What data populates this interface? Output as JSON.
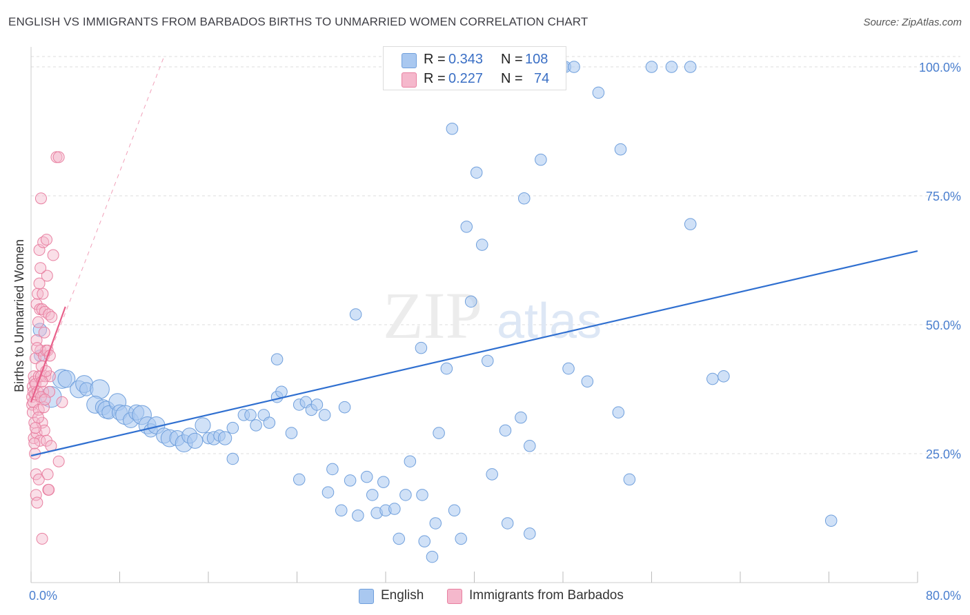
{
  "header": {
    "title": "ENGLISH VS IMMIGRANTS FROM BARBADOS BIRTHS TO UNMARRIED WOMEN CORRELATION CHART",
    "source": "Source: ZipAtlas.com"
  },
  "watermark": {
    "zip": "ZIP",
    "atlas": "atlas"
  },
  "legend": {
    "rows": [
      {
        "r_label": "R =",
        "r_value": "0.343",
        "n_label": "N =",
        "n_value": "108"
      },
      {
        "r_label": "R =",
        "r_value": "0.227",
        "n_label": "N =",
        "n_value": "74"
      }
    ]
  },
  "bottom_legend": {
    "english": "English",
    "barbados": "Immigrants from Barbados"
  },
  "colors": {
    "english_fill": "#a9c8f0",
    "english_stroke": "#6f9fdc",
    "english_line": "#2f6fd0",
    "barbados_fill": "#f5b8cc",
    "barbados_stroke": "#e87fa0",
    "barbados_line": "#e8608a",
    "grid": "#dddddd",
    "axis_text": "#4a7fcf"
  },
  "chart_data": {
    "type": "scatter",
    "title": "ENGLISH VS IMMIGRANTS FROM BARBADOS BIRTHS TO UNMARRIED WOMEN CORRELATION CHART",
    "xlabel": "",
    "ylabel": "Births to Unmarried Women",
    "xlim": [
      0,
      80
    ],
    "ylim": [
      0,
      102
    ],
    "x_tick_labels": [
      "0.0%",
      "80.0%"
    ],
    "y_ticks": [
      25,
      50,
      75,
      100
    ],
    "y_tick_labels": [
      "25.0%",
      "50.0%",
      "75.0%",
      "100.0%"
    ],
    "series": [
      {
        "name": "English",
        "r": 0.343,
        "n": 108,
        "trend": {
          "x0": 0,
          "y0": 24.6,
          "x1": 80,
          "y1": 64.3
        },
        "points": [
          [
            0.8,
            49,
            14
          ],
          [
            0.8,
            44,
            12
          ],
          [
            1.8,
            36,
            22
          ],
          [
            2.8,
            39.5,
            20
          ],
          [
            3.2,
            39.5,
            18
          ],
          [
            4.3,
            37.5,
            18
          ],
          [
            4.8,
            38.5,
            18
          ],
          [
            5,
            37.5,
            14
          ],
          [
            6.2,
            37.5,
            20
          ],
          [
            5.8,
            34.5,
            18
          ],
          [
            6.5,
            34,
            16
          ],
          [
            6.8,
            33.5,
            18
          ],
          [
            7,
            33,
            14
          ],
          [
            7.8,
            35,
            18
          ],
          [
            8,
            33,
            16
          ],
          [
            8.5,
            32.5,
            20
          ],
          [
            9,
            31.5,
            16
          ],
          [
            9.5,
            33,
            16
          ],
          [
            10,
            32.5,
            20
          ],
          [
            10.5,
            30.5,
            18
          ],
          [
            10.8,
            29.5,
            14
          ],
          [
            11.3,
            30.5,
            18
          ],
          [
            12,
            28.5,
            16
          ],
          [
            12.5,
            28,
            18
          ],
          [
            13.2,
            28,
            16
          ],
          [
            13.8,
            27,
            18
          ],
          [
            14.3,
            28.5,
            16
          ],
          [
            14.8,
            27.5,
            16
          ],
          [
            15.5,
            30.5,
            16
          ],
          [
            16,
            28,
            12
          ],
          [
            16.5,
            28,
            14
          ],
          [
            17,
            28.5,
            12
          ],
          [
            17.5,
            28,
            14
          ],
          [
            18.2,
            30,
            12
          ],
          [
            18.2,
            24,
            12
          ],
          [
            19.2,
            32.5,
            12
          ],
          [
            19.8,
            32.5,
            12
          ],
          [
            20.3,
            30.5,
            12
          ],
          [
            21,
            32.5,
            12
          ],
          [
            21.5,
            31,
            12
          ],
          [
            22.2,
            36,
            12
          ],
          [
            22.6,
            37,
            12
          ],
          [
            22.2,
            43.3,
            12
          ],
          [
            23.5,
            29,
            12
          ],
          [
            24.2,
            34.5,
            12
          ],
          [
            24.8,
            35,
            12
          ],
          [
            24.2,
            20,
            12
          ],
          [
            25.3,
            33.5,
            12
          ],
          [
            25.8,
            34.5,
            12
          ],
          [
            26.5,
            32.5,
            12
          ],
          [
            26.8,
            17.5,
            12
          ],
          [
            27.2,
            22,
            12
          ],
          [
            28,
            14,
            12
          ],
          [
            28.3,
            34,
            12
          ],
          [
            28.8,
            19.8,
            12
          ],
          [
            29.3,
            52,
            12
          ],
          [
            29.5,
            13,
            12
          ],
          [
            30.3,
            20.5,
            12
          ],
          [
            30.8,
            17,
            12
          ],
          [
            31.2,
            13.5,
            12
          ],
          [
            31.8,
            19.5,
            12
          ],
          [
            32,
            14,
            12
          ],
          [
            32.8,
            14.3,
            12
          ],
          [
            33.2,
            8.5,
            12
          ],
          [
            33.8,
            17,
            12
          ],
          [
            34.2,
            23.5,
            12
          ],
          [
            35.2,
            45.5,
            12
          ],
          [
            35.3,
            17,
            12
          ],
          [
            35.5,
            8,
            12
          ],
          [
            36.2,
            5,
            12
          ],
          [
            36.5,
            11.5,
            12
          ],
          [
            36.8,
            29,
            12
          ],
          [
            37.5,
            41.5,
            12
          ],
          [
            38,
            88,
            12
          ],
          [
            38.2,
            14,
            12
          ],
          [
            38.8,
            8.5,
            12
          ],
          [
            39.3,
            69,
            12
          ],
          [
            39.7,
            54.5,
            12
          ],
          [
            40.2,
            79.5,
            12
          ],
          [
            40.7,
            65.5,
            12
          ],
          [
            41.2,
            43,
            12
          ],
          [
            41.6,
            21,
            12
          ],
          [
            42.2,
            100,
            12
          ],
          [
            42.8,
            29.5,
            12
          ],
          [
            43,
            11.5,
            12
          ],
          [
            44.2,
            32,
            12
          ],
          [
            44.5,
            74.5,
            12
          ],
          [
            45,
            26.5,
            12
          ],
          [
            45,
            9.5,
            12
          ],
          [
            46,
            82,
            12
          ],
          [
            48,
            100,
            12
          ],
          [
            48.2,
            100,
            12
          ],
          [
            49,
            100,
            12
          ],
          [
            48.5,
            41.5,
            12
          ],
          [
            50.2,
            39,
            12
          ],
          [
            51.2,
            95,
            12
          ],
          [
            53,
            33,
            12
          ],
          [
            53.2,
            84,
            12
          ],
          [
            54,
            20,
            12
          ],
          [
            56,
            100,
            12
          ],
          [
            57.8,
            100,
            12
          ],
          [
            59.5,
            69.5,
            12
          ],
          [
            59.5,
            100,
            12
          ],
          [
            61.5,
            39.5,
            12
          ],
          [
            62.5,
            40,
            12
          ],
          [
            72.2,
            12,
            12
          ]
        ]
      },
      {
        "name": "Immigrants from Barbados",
        "r": 0.227,
        "n": 74,
        "trend": {
          "x0": 0,
          "y0": 35,
          "x1": 3.1,
          "y1": 53.5
        },
        "trend_extended": {
          "x0": 0,
          "y0": 35,
          "x1": 12.0,
          "y1": 102
        },
        "points": [
          [
            0.1,
            36
          ],
          [
            0.1,
            34.5
          ],
          [
            0.15,
            38
          ],
          [
            0.15,
            33
          ],
          [
            0.2,
            37
          ],
          [
            0.2,
            35
          ],
          [
            0.25,
            28
          ],
          [
            0.25,
            40
          ],
          [
            0.3,
            39
          ],
          [
            0.3,
            31
          ],
          [
            0.35,
            36.5
          ],
          [
            0.35,
            25
          ],
          [
            0.4,
            43.5
          ],
          [
            0.4,
            38.5
          ],
          [
            0.45,
            21
          ],
          [
            0.45,
            17
          ],
          [
            0.5,
            54
          ],
          [
            0.5,
            29
          ],
          [
            0.55,
            15.5
          ],
          [
            0.6,
            56
          ],
          [
            0.6,
            37
          ],
          [
            0.65,
            50.5
          ],
          [
            0.7,
            40
          ],
          [
            0.7,
            33.5
          ],
          [
            0.7,
            20
          ],
          [
            0.75,
            64.5
          ],
          [
            0.8,
            53
          ],
          [
            0.8,
            27.5
          ],
          [
            0.85,
            45
          ],
          [
            0.9,
            40
          ],
          [
            0.9,
            74.5
          ],
          [
            0.95,
            42
          ],
          [
            1,
            53
          ],
          [
            1,
            31
          ],
          [
            1,
            8.5
          ],
          [
            1.05,
            56
          ],
          [
            1.1,
            37
          ],
          [
            1.1,
            66
          ],
          [
            1.15,
            44
          ],
          [
            1.2,
            48.5
          ],
          [
            1.2,
            29.5
          ],
          [
            1.25,
            52.5
          ],
          [
            1.3,
            40
          ],
          [
            1.35,
            45
          ],
          [
            1.4,
            66.5
          ],
          [
            1.4,
            27.5
          ],
          [
            1.45,
            59.5
          ],
          [
            1.5,
            45
          ],
          [
            1.5,
            21
          ],
          [
            1.55,
            18
          ],
          [
            1.6,
            52
          ],
          [
            1.65,
            37
          ],
          [
            1.7,
            44
          ],
          [
            1.7,
            40
          ],
          [
            1.8,
            26.5
          ],
          [
            1.85,
            51.5
          ],
          [
            2,
            63.5
          ],
          [
            2.3,
            82.5
          ],
          [
            2.5,
            82.5
          ],
          [
            2.5,
            23.5
          ],
          [
            2.8,
            35
          ],
          [
            0.5,
            47
          ],
          [
            0.65,
            32
          ],
          [
            0.9,
            36
          ],
          [
            1.15,
            34
          ],
          [
            1.35,
            41
          ],
          [
            0.4,
            30
          ],
          [
            0.55,
            45.5
          ],
          [
            0.75,
            58
          ],
          [
            1.0,
            39
          ],
          [
            1.25,
            35.5
          ],
          [
            0.3,
            27
          ],
          [
            1.6,
            18
          ],
          [
            0.85,
            61
          ]
        ]
      }
    ]
  }
}
